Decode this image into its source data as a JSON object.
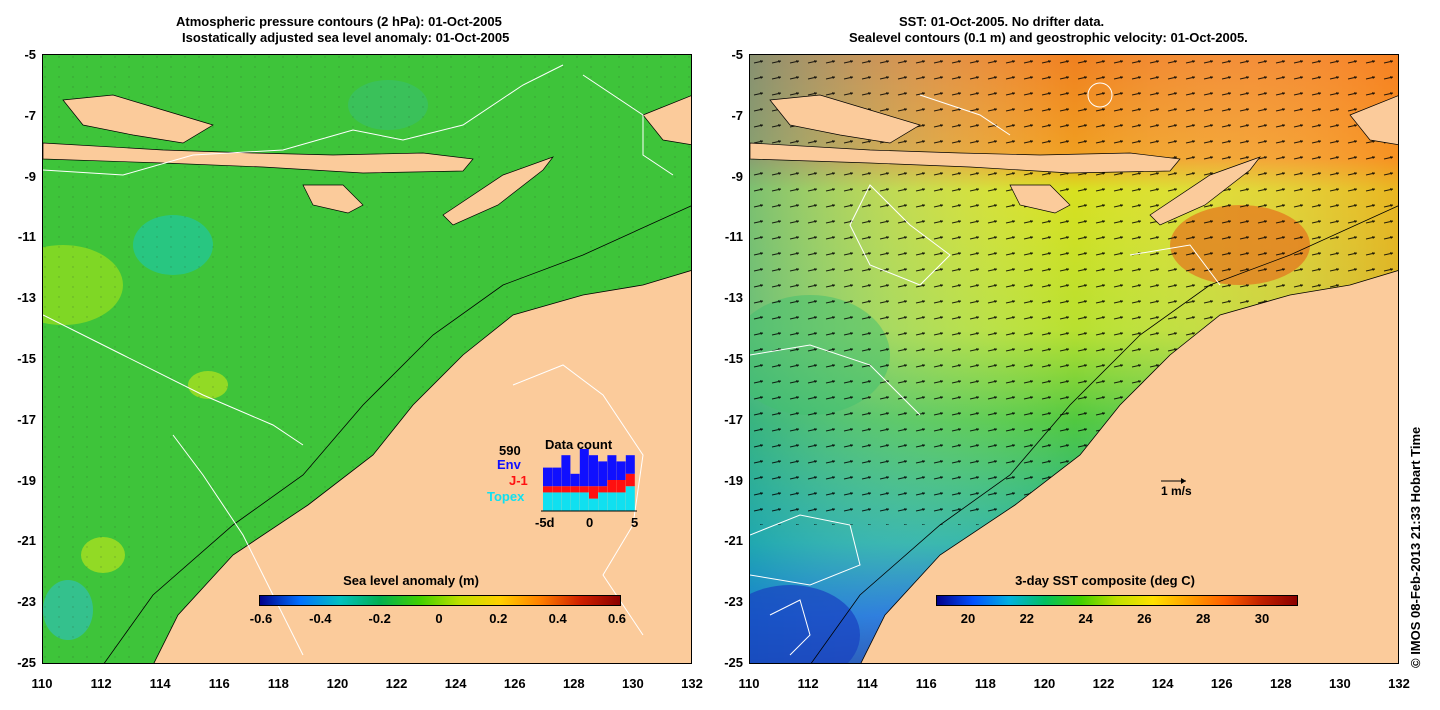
{
  "left_panel": {
    "title_line1": "Atmospheric pressure contours (2 hPa): 01-Oct-2005",
    "title_line2": "Isostatically adjusted sea level anomaly: 01-Oct-2005",
    "colorbar": {
      "label": "Sea level anomaly (m)",
      "ticks": [
        "-0.6",
        "-0.4",
        "-0.2",
        "0",
        "0.2",
        "0.4",
        "0.6"
      ],
      "colors": [
        "#00008b",
        "#0070ff",
        "#00c0c0",
        "#00b050",
        "#40d000",
        "#c0e000",
        "#ffd000",
        "#ff8000",
        "#d02000",
        "#8b0000"
      ]
    },
    "data_count": {
      "title": "Data count",
      "total": "590",
      "missions": [
        "Env",
        "J-1",
        "Topex"
      ],
      "mission_colors": [
        "#1010ff",
        "#ff1010",
        "#10e0f0"
      ],
      "x_ticks": [
        "-5d",
        "0",
        "5"
      ],
      "bars": [
        {
          "topex": 3,
          "j1": 1,
          "env": 3
        },
        {
          "topex": 3,
          "j1": 1,
          "env": 3
        },
        {
          "topex": 3,
          "j1": 1,
          "env": 5
        },
        {
          "topex": 3,
          "j1": 1,
          "env": 2
        },
        {
          "topex": 3,
          "j1": 1,
          "env": 7
        },
        {
          "topex": 2,
          "j1": 2,
          "env": 5
        },
        {
          "topex": 3,
          "j1": 1,
          "env": 4
        },
        {
          "topex": 3,
          "j1": 2,
          "env": 4
        },
        {
          "topex": 3,
          "j1": 2,
          "env": 3
        },
        {
          "topex": 4,
          "j1": 2,
          "env": 3
        }
      ]
    }
  },
  "right_panel": {
    "title_line1": "SST: 01-Oct-2005. No drifter data.",
    "title_line2": "Sealevel contours (0.1 m) and geostrophic velocity: 01-Oct-2005.",
    "velocity_scale_label": "1 m/s",
    "colorbar": {
      "label": "3-day SST composite (deg C)",
      "ticks": [
        "20",
        "22",
        "24",
        "26",
        "28",
        "30"
      ],
      "colors": [
        "#00008b",
        "#0050ff",
        "#00b0e0",
        "#00c060",
        "#40d000",
        "#c0e000",
        "#ffe000",
        "#ffa000",
        "#ff6000",
        "#c02000",
        "#8b0000"
      ]
    }
  },
  "axes": {
    "y_ticks": [
      "-5",
      "-7",
      "-9",
      "-11",
      "-13",
      "-15",
      "-17",
      "-19",
      "-21",
      "-23",
      "-25"
    ],
    "x_ticks": [
      "110",
      "112",
      "114",
      "116",
      "118",
      "120",
      "122",
      "124",
      "126",
      "128",
      "130",
      "132"
    ],
    "lat_range": [
      -25,
      -5
    ],
    "lon_range": [
      110,
      132
    ]
  },
  "credit": "© IMOS 08-Feb-2013 21:33 Hobart Time",
  "colors": {
    "land": "#fbcb9b",
    "ocean_sla": "#3ec43a",
    "sst_warm": "#f08020"
  }
}
